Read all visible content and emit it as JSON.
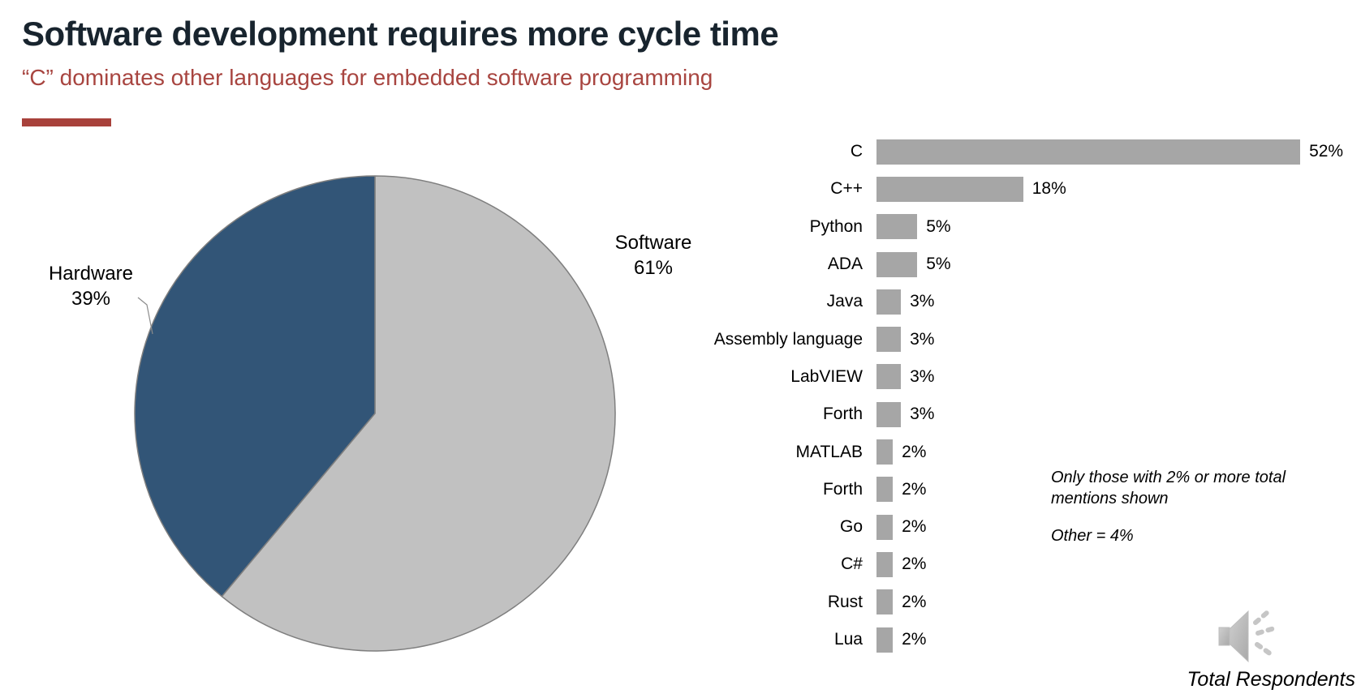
{
  "header": {
    "title": "Software development requires more cycle time",
    "subtitle": "“C” dominates other languages for embedded software programming"
  },
  "pie_labels": {
    "software_name": "Software",
    "software_value": "61%",
    "hardware_name": "Hardware",
    "hardware_value": "39%"
  },
  "notes": {
    "filter_note": "Only those with 2% or more total mentions shown",
    "other_note": "Other = 4%",
    "total_respondents": "Total Respondents"
  },
  "icons": {
    "audio": "speaker-icon"
  },
  "colors": {
    "title_text": "#18242e",
    "accent_red": "#a84540",
    "rule_red": "#a8413b",
    "pie_blue": "#325577",
    "pie_gray": "#c1c1c1",
    "pie_stroke": "#7f7f7f",
    "bar_gray": "#a6a6a6"
  },
  "chart_data": [
    {
      "type": "pie",
      "labels": [
        "Software",
        "Hardware"
      ],
      "values": [
        61,
        39
      ],
      "colors": [
        "#c1c1c1",
        "#325577"
      ],
      "start_angle_deg": 0,
      "direction": "clockwise",
      "legend_position": "outside-labels"
    },
    {
      "type": "bar",
      "orientation": "horizontal",
      "categories": [
        "C",
        "C++",
        "Python",
        "ADA",
        "Java",
        "Assembly language",
        "LabVIEW",
        "Forth",
        "MATLAB",
        "Forth",
        "Go",
        "C#",
        "Rust",
        "Lua"
      ],
      "values": [
        52,
        18,
        5,
        5,
        3,
        3,
        3,
        3,
        2,
        2,
        2,
        2,
        2,
        2
      ],
      "value_suffix": "%",
      "bar_color": "#a6a6a6",
      "xlim": [
        0,
        52
      ],
      "grid": false,
      "value_labels_shown": true
    }
  ]
}
